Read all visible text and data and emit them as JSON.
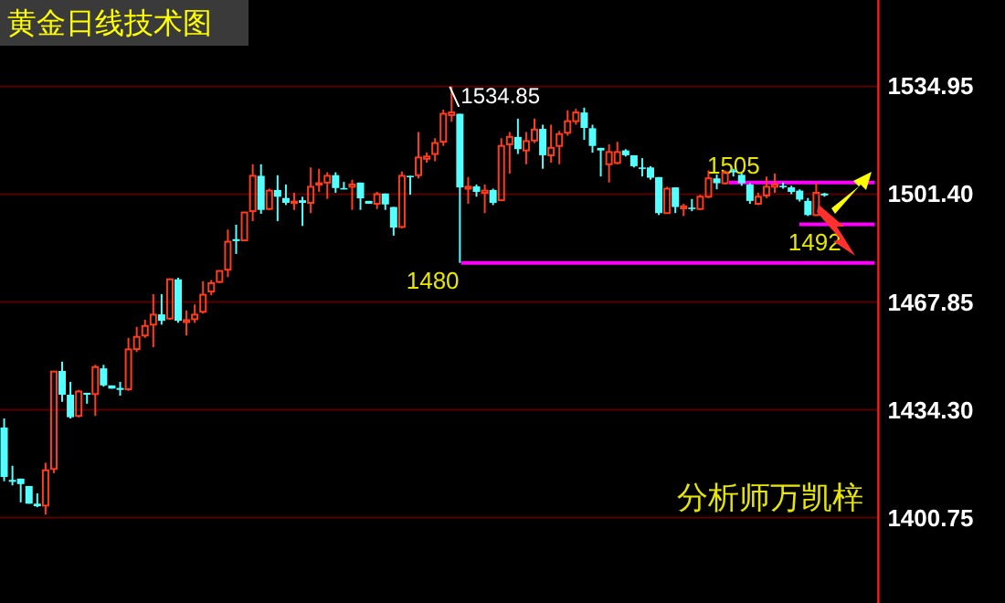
{
  "chart_data": {
    "type": "candlestick",
    "title": "黄金日线技术图",
    "categories": [
      null,
      null,
      null,
      null,
      null,
      null,
      null,
      null,
      null,
      null,
      null,
      null,
      null,
      null,
      null,
      null,
      null,
      null,
      null,
      null,
      null,
      null,
      null,
      null,
      null,
      null,
      null,
      null,
      null,
      null,
      null,
      null,
      null,
      null,
      null,
      null,
      null,
      null,
      null,
      null,
      null,
      null,
      null,
      null,
      null,
      null,
      null,
      null,
      null,
      null,
      null,
      null,
      null,
      null,
      null,
      null,
      null,
      null,
      null,
      null,
      null,
      null,
      null,
      null,
      null,
      null,
      null,
      null,
      null,
      null,
      null,
      null,
      null,
      null,
      null,
      null,
      null,
      null,
      null,
      null,
      null,
      null,
      null,
      null,
      null,
      null,
      null,
      null,
      null,
      null,
      null,
      null,
      null,
      null,
      null,
      null,
      null,
      null,
      null,
      null,
      null,
      null,
      null,
      null,
      null,
      null
    ],
    "ohlc": [
      [
        1428.8,
        1431.6,
        1412.1,
        1413.4
      ],
      [
        1412.5,
        1416.9,
        1410.8,
        1411.9
      ],
      [
        1412.9,
        1412.9,
        1405.5,
        1411.2
      ],
      [
        1410.6,
        1410.6,
        1405.1,
        1405.1
      ],
      [
        1405.1,
        1408.3,
        1404.0,
        1404.3
      ],
      [
        1404.5,
        1417.8,
        1401.7,
        1415.5
      ],
      [
        1415.9,
        1446.2,
        1414.6,
        1446.2
      ],
      [
        1446.4,
        1449.3,
        1436.8,
        1439.0
      ],
      [
        1439.0,
        1443.0,
        1431.6,
        1432.0
      ],
      [
        1432.4,
        1440.5,
        1432.0,
        1440.0
      ],
      [
        1439.6,
        1439.6,
        1436.2,
        1439.0
      ],
      [
        1439.2,
        1448.3,
        1432.4,
        1447.6
      ],
      [
        1447.2,
        1448.3,
        1441.5,
        1441.9
      ],
      [
        1441.9,
        1441.9,
        1440.9,
        1440.9
      ],
      [
        1441.1,
        1443.0,
        1438.7,
        1440.5
      ],
      [
        1440.7,
        1456.7,
        1440.2,
        1453.1
      ],
      [
        1453.2,
        1460.1,
        1452.3,
        1457.0
      ],
      [
        1457.4,
        1462.3,
        1456.7,
        1460.4
      ],
      [
        1460.8,
        1470.3,
        1453.8,
        1463.9
      ],
      [
        1464.0,
        1470.3,
        1460.8,
        1462.0
      ],
      [
        1462.7,
        1475.2,
        1462.3,
        1474.9
      ],
      [
        1474.9,
        1475.4,
        1461.4,
        1462.0
      ],
      [
        1461.6,
        1465.2,
        1457.4,
        1462.2
      ],
      [
        1462.5,
        1467.1,
        1461.4,
        1463.9
      ],
      [
        1464.8,
        1474.3,
        1464.2,
        1470.1
      ],
      [
        1471.1,
        1474.7,
        1469.9,
        1473.7
      ],
      [
        1474.1,
        1477.5,
        1473.7,
        1477.5
      ],
      [
        1477.9,
        1490.4,
        1475.6,
        1486.6
      ],
      [
        1487.4,
        1491.9,
        1482.8,
        1486.8
      ],
      [
        1487.0,
        1495.7,
        1487.0,
        1495.7
      ],
      [
        1496.1,
        1510.7,
        1493.0,
        1507.1
      ],
      [
        1507.1,
        1510.7,
        1495.3,
        1496.5
      ],
      [
        1496.8,
        1503.1,
        1496.5,
        1502.5
      ],
      [
        1502.7,
        1507.3,
        1493.0,
        1500.6
      ],
      [
        1500.2,
        1504.4,
        1498.0,
        1498.7
      ],
      [
        1498.7,
        1501.8,
        1496.5,
        1499.1
      ],
      [
        1499.5,
        1500.6,
        1491.5,
        1498.7
      ],
      [
        1498.7,
        1509.7,
        1495.5,
        1503.7
      ],
      [
        1504.4,
        1509.3,
        1502.1,
        1504.8
      ],
      [
        1505.0,
        1508.2,
        1499.9,
        1507.1
      ],
      [
        1507.3,
        1508.2,
        1501.8,
        1503.3
      ],
      [
        1503.3,
        1505.2,
        1502.9,
        1502.9
      ],
      [
        1503.7,
        1505.9,
        1496.5,
        1504.4
      ],
      [
        1505.0,
        1505.0,
        1496.5,
        1500.1
      ],
      [
        1499.3,
        1499.3,
        1498.4,
        1498.4
      ],
      [
        1498.4,
        1502.1,
        1496.8,
        1501.4
      ],
      [
        1501.6,
        1501.6,
        1496.5,
        1498.2
      ],
      [
        1497.4,
        1497.4,
        1488.5,
        1491.0
      ],
      [
        1491.2,
        1508.4,
        1490.8,
        1507.1
      ],
      [
        1507.1,
        1507.1,
        1501.2,
        1506.7
      ],
      [
        1507.3,
        1520.7,
        1506.3,
        1512.8
      ],
      [
        1512.4,
        1514.3,
        1511.2,
        1513.1
      ],
      [
        1513.9,
        1518.8,
        1511.6,
        1517.3
      ],
      [
        1517.7,
        1527.7,
        1516.4,
        1526.4
      ],
      [
        1526.0,
        1534.85,
        1523.9,
        1526.8
      ],
      [
        1526.4,
        1526.4,
        1480,
        1503.5
      ],
      [
        1503.1,
        1506.7,
        1498.4,
        1503.7
      ],
      [
        1503.8,
        1504.4,
        1500.6,
        1502.1
      ],
      [
        1501.8,
        1504.4,
        1495.5,
        1502.5
      ],
      [
        1502.7,
        1503.1,
        1498.0,
        1498.7
      ],
      [
        1499.5,
        1518.8,
        1499.5,
        1516.4
      ],
      [
        1516.9,
        1520.7,
        1507.8,
        1519.2
      ],
      [
        1519.2,
        1524.9,
        1513.9,
        1515.4
      ],
      [
        1515.0,
        1520.7,
        1510.7,
        1517.9
      ],
      [
        1518.1,
        1524.9,
        1517.3,
        1521.5
      ],
      [
        1521.7,
        1523.0,
        1509.3,
        1513.5
      ],
      [
        1513.5,
        1523.0,
        1511.2,
        1515.8
      ],
      [
        1516.4,
        1521.1,
        1510.7,
        1520.1
      ],
      [
        1520.5,
        1527.5,
        1519.6,
        1524.1
      ],
      [
        1524.1,
        1527.9,
        1523.0,
        1526.8
      ],
      [
        1526.8,
        1528.3,
        1518.3,
        1522.0
      ],
      [
        1521.9,
        1523.0,
        1514.3,
        1516.4
      ],
      [
        1515.8,
        1515.8,
        1506.9,
        1515.0
      ],
      [
        1510.7,
        1516.9,
        1505.0,
        1514.5
      ],
      [
        1511.1,
        1517.7,
        1510.7,
        1514.5
      ],
      [
        1515.0,
        1515.4,
        1513.1,
        1513.5
      ],
      [
        1513.5,
        1513.5,
        1509.7,
        1510.1
      ],
      [
        1509.7,
        1512.6,
        1506.9,
        1509.3
      ],
      [
        1509.7,
        1510.1,
        1505.9,
        1506.5
      ],
      [
        1506.7,
        1506.7,
        1494.9,
        1495.5
      ],
      [
        1495.5,
        1503.7,
        1495.3,
        1503.1
      ],
      [
        1503.5,
        1503.5,
        1495.5,
        1497.4
      ],
      [
        1497.0,
        1498.4,
        1494.6,
        1497.6
      ],
      [
        1497.2,
        1499.9,
        1496.1,
        1496.8
      ],
      [
        1496.8,
        1501.2,
        1496.5,
        1500.6
      ],
      [
        1500.6,
        1508.8,
        1500.2,
        1506.3
      ],
      [
        1506.3,
        1507.5,
        1502.9,
        1504.8
      ],
      [
        1504.8,
        1508.8,
        1504.4,
        1508.2
      ],
      [
        1508.8,
        1509.3,
        1506.9,
        1508.2
      ],
      [
        1507.4,
        1507.8,
        1504.0,
        1504.8
      ],
      [
        1504.4,
        1504.8,
        1498.4,
        1499.3
      ],
      [
        1498.4,
        1501.8,
        1498.0,
        1500.6
      ],
      [
        1501.0,
        1506.9,
        1500.2,
        1503.7
      ],
      [
        1503.7,
        1507.8,
        1501.8,
        1504.4
      ],
      [
        1504.0,
        1505.0,
        1503.1,
        1503.7
      ],
      [
        1503.5,
        1504.0,
        1501.4,
        1502.1
      ],
      [
        1502.5,
        1502.9,
        1499.1,
        1499.7
      ],
      [
        1499.3,
        1500.2,
        1494.6,
        1494.9
      ],
      [
        1494.9,
        1505.0,
        1494.6,
        1501.8
      ],
      [
        1501.6,
        1501.8,
        1500.6,
        1501.0
      ],
      null,
      null,
      null,
      null,
      null,
      null
    ],
    "ylim": [
      1374.2,
      1561.8
    ],
    "yticks": [
      {
        "value": 1400.75,
        "label": "1400.75"
      },
      {
        "value": 1434.3,
        "label": "1434.30"
      },
      {
        "value": 1467.85,
        "label": "1467.85"
      },
      {
        "value": 1501.4,
        "label": "1501.40"
      },
      {
        "value": 1534.95,
        "label": "1534.95"
      }
    ],
    "grid": "y",
    "tick_labels": "y",
    "ref_lines": [
      {
        "axis": "y",
        "value": 1505,
        "label": "1505",
        "color": "#ff00ff"
      },
      {
        "axis": "y",
        "value": 1492,
        "label": "1492",
        "color": "#ff00ff"
      },
      {
        "axis": "y",
        "value": 1480,
        "label": "1480",
        "color": "#ff00ff"
      }
    ],
    "annotations": [
      "1534.85",
      "分析师万凯梓"
    ]
  }
}
